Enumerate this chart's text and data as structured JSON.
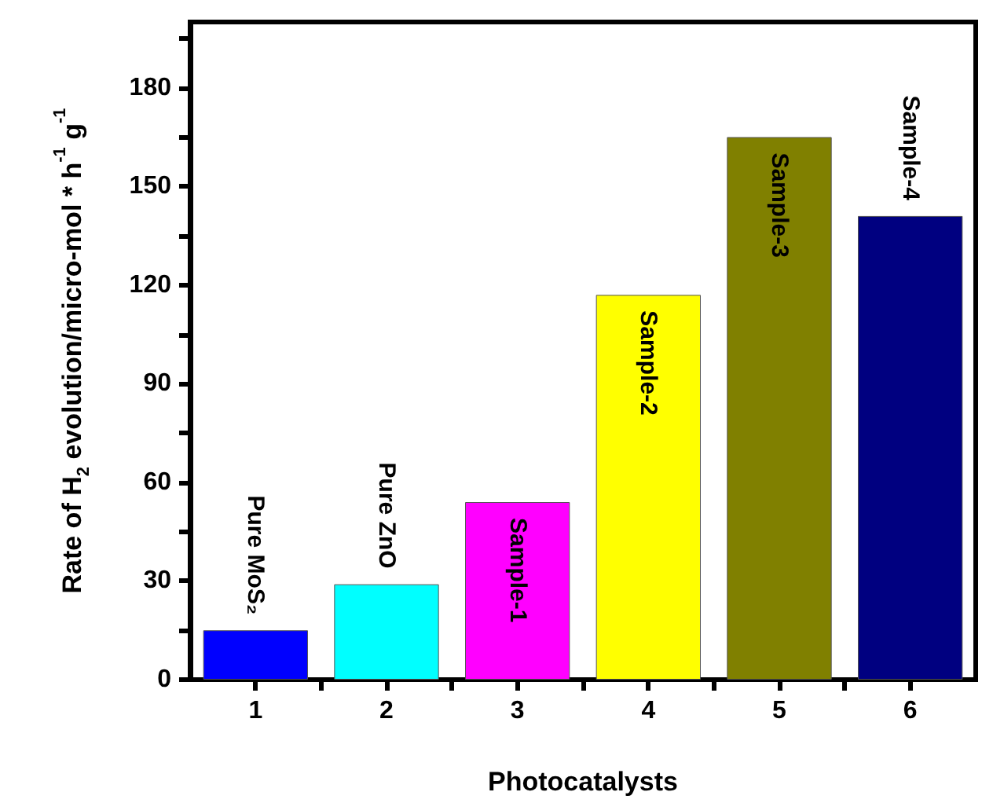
{
  "chart_data": {
    "type": "bar",
    "xlabel": "Photocatalysts",
    "ylabel": "Rate of H$_{2}$ evolution/micro-mol * h$^{-1}$ g$^{-1}$",
    "x": [
      1,
      2,
      3,
      4,
      5,
      6
    ],
    "values": [
      15,
      29,
      54,
      117,
      165,
      141
    ],
    "colors": [
      "#0000ff",
      "#00ffff",
      "#ff00ff",
      "#ffff00",
      "#808000",
      "#000080"
    ],
    "xlim": [
      0.5,
      6.5
    ],
    "xticks": [
      1,
      {
        "value": 1.5,
        "label": null
      },
      2,
      {
        "value": 2.5,
        "label": null
      },
      3,
      {
        "value": 3.5,
        "label": null
      },
      4,
      {
        "value": 4.5,
        "label": null
      },
      5,
      {
        "value": 5.5,
        "label": null
      },
      6
    ],
    "ylim": [
      0,
      200
    ],
    "yticks": [
      0,
      {
        "value": 15,
        "label": null
      },
      30,
      {
        "value": 45,
        "label": null
      },
      60,
      {
        "value": 75,
        "label": null
      },
      90,
      {
        "value": 105,
        "label": null
      },
      120,
      {
        "value": 135,
        "label": null
      },
      150,
      {
        "value": 165,
        "label": null
      },
      180,
      {
        "value": 195,
        "label": null
      }
    ],
    "annotations": [
      {
        "text": "Pure MoS₂",
        "x": 1,
        "y": 15
      },
      {
        "text": "Pure ZnO",
        "x": 2,
        "y": 29
      },
      {
        "text": "Sample-1",
        "x": 3,
        "y": 54
      },
      {
        "text": "Sample-2",
        "x": 4,
        "y": 117
      },
      {
        "text": "Sample-3",
        "x": 5,
        "y": 165
      },
      {
        "text": "Sample-4",
        "x": 6,
        "y": 141
      }
    ],
    "grid": false
  }
}
